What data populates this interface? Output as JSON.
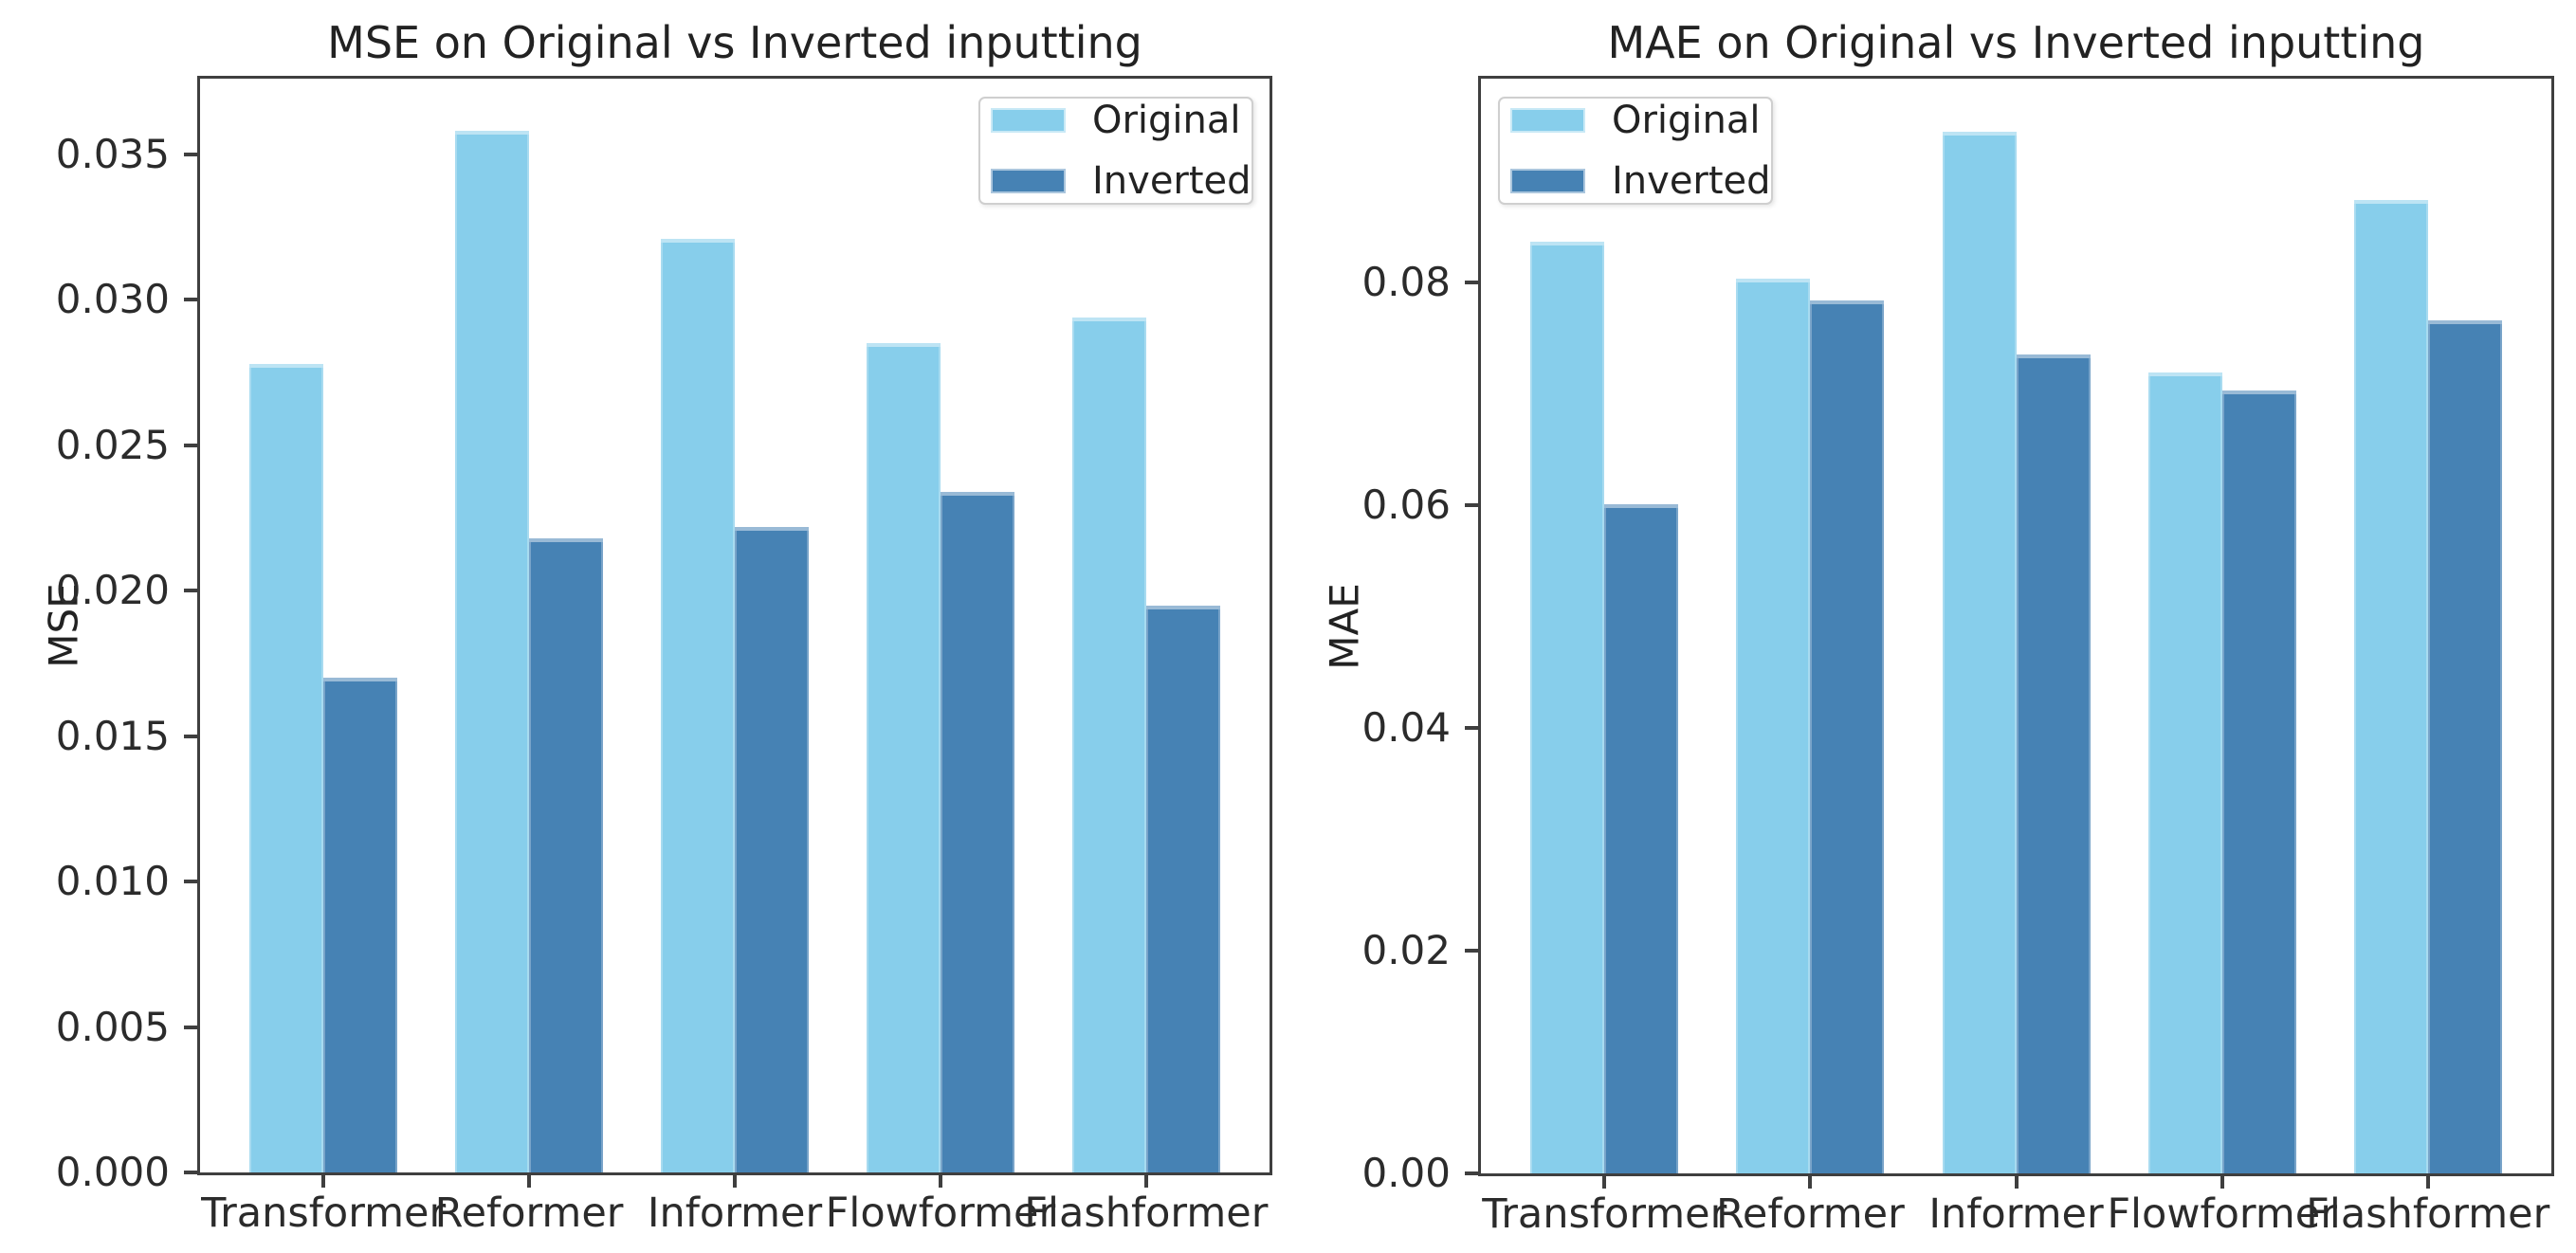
{
  "figure": {
    "background": "#ffffff",
    "description": "Two grouped bar charts comparing Original vs Inverted inputting"
  },
  "colors": {
    "original": "#87CEEB",
    "inverted": "#4682B4",
    "spine": "#3f3f3f",
    "text": "#222222"
  },
  "legend": {
    "items": [
      {
        "label": "Original",
        "color_key": "original"
      },
      {
        "label": "Inverted",
        "color_key": "inverted"
      }
    ]
  },
  "chart_data": [
    {
      "type": "bar",
      "title": "MSE on Original vs Inverted inputting",
      "xlabel": "",
      "ylabel": "MSE",
      "categories": [
        "Transformer",
        "Reformer",
        "Informer",
        "Flowformer",
        "Flashformer"
      ],
      "series": [
        {
          "name": "Original",
          "color_key": "original",
          "values": [
            0.0278,
            0.0358,
            0.0321,
            0.0285,
            0.0294
          ]
        },
        {
          "name": "Inverted",
          "color_key": "inverted",
          "values": [
            0.017,
            0.0218,
            0.0222,
            0.0234,
            0.0195
          ]
        }
      ],
      "yticks": {
        "values": [
          0.0,
          0.005,
          0.01,
          0.015,
          0.02,
          0.025,
          0.03,
          0.035
        ],
        "labels": [
          "0.000",
          "0.005",
          "0.010",
          "0.015",
          "0.020",
          "0.025",
          "0.030",
          "0.035"
        ]
      },
      "ylim": [
        0,
        0.0376
      ],
      "grid": false,
      "legend_position": "upper-right"
    },
    {
      "type": "bar",
      "title": "MAE on Original vs Inverted inputting",
      "xlabel": "",
      "ylabel": "MAE",
      "categories": [
        "Transformer",
        "Reformer",
        "Informer",
        "Flowformer",
        "Flashformer"
      ],
      "series": [
        {
          "name": "Original",
          "color_key": "original",
          "values": [
            0.0837,
            0.0803,
            0.0935,
            0.0719,
            0.0874
          ]
        },
        {
          "name": "Inverted",
          "color_key": "inverted",
          "values": [
            0.0601,
            0.0784,
            0.0735,
            0.0703,
            0.0766
          ]
        }
      ],
      "yticks": {
        "values": [
          0.0,
          0.02,
          0.04,
          0.06,
          0.08
        ],
        "labels": [
          "0.00",
          "0.02",
          "0.04",
          "0.06",
          "0.08"
        ]
      },
      "ylim": [
        0,
        0.0983
      ],
      "grid": false,
      "legend_position": "upper-left"
    }
  ]
}
